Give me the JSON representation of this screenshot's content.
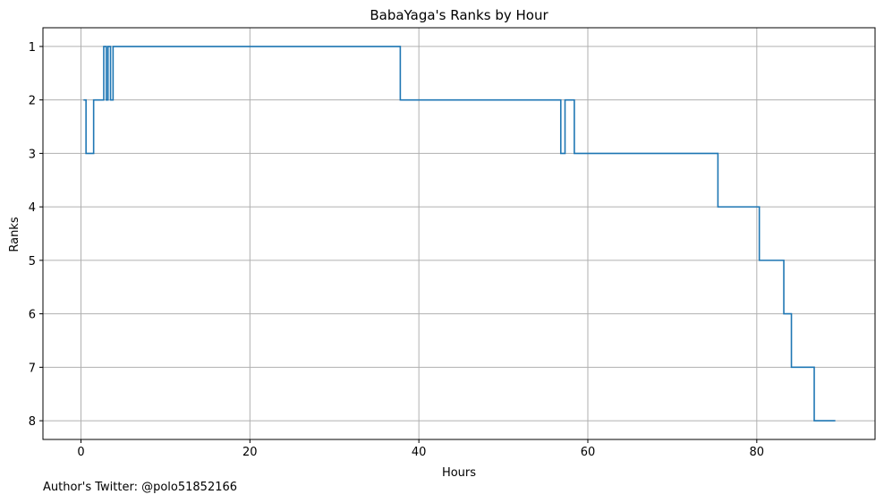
{
  "chart_data": {
    "type": "line",
    "step": "post",
    "title": "BabaYaga's Ranks by Hour",
    "xlabel": "Hours",
    "ylabel": "Ranks",
    "xlim": [
      -4.5,
      94
    ],
    "ylim": [
      8.35,
      0.65
    ],
    "y_inverted": true,
    "xticks": [
      0,
      20,
      40,
      60,
      80
    ],
    "yticks": [
      1,
      2,
      3,
      4,
      5,
      6,
      7,
      8
    ],
    "grid": true,
    "series": [
      {
        "color": "#1f77b4",
        "x": [
          0.3,
          0.6,
          1.5,
          2.7,
          3.0,
          3.2,
          3.5,
          3.8,
          4.1,
          37.8,
          56.8,
          57.3,
          58.4,
          75.4,
          80.3,
          83.2,
          84.1,
          86.8,
          89.3
        ],
        "y": [
          2,
          3,
          2,
          1,
          2,
          1,
          2,
          1,
          1,
          2,
          3,
          2,
          3,
          4,
          5,
          6,
          7,
          8,
          8
        ]
      }
    ]
  },
  "footer_text": "Author's Twitter: @polo51852166"
}
